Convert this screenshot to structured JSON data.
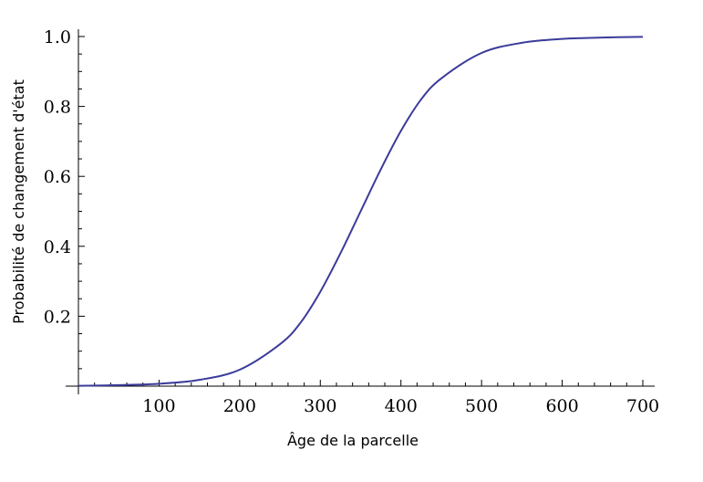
{
  "chart_data": {
    "type": "line",
    "title": "",
    "xlabel": "Âge de la parcelle",
    "ylabel": "Probabilité de changement d'état",
    "xlim": [
      0,
      700
    ],
    "ylim": [
      0,
      1.0
    ],
    "x_ticks": [
      100,
      200,
      300,
      400,
      500,
      600,
      700
    ],
    "x_tick_labels": [
      "100",
      "200",
      "300",
      "400",
      "500",
      "600",
      "700"
    ],
    "y_ticks": [
      0.2,
      0.4,
      0.6,
      0.8,
      1.0
    ],
    "y_tick_labels": [
      "0.2",
      "0.4",
      "0.6",
      "0.8",
      "1.0"
    ],
    "grid": false,
    "line_color": "#3b3b9b",
    "series": [
      {
        "x": [
          0,
          50,
          100,
          150,
          200,
          250,
          275,
          300,
          325,
          350,
          375,
          400,
          425,
          450,
          500,
          550,
          600,
          650,
          700
        ],
        "y": [
          0.001,
          0.003,
          0.007,
          0.018,
          0.047,
          0.12,
          0.18,
          0.27,
          0.38,
          0.5,
          0.62,
          0.73,
          0.82,
          0.88,
          0.953,
          0.982,
          0.993,
          0.997,
          0.999
        ]
      }
    ]
  }
}
